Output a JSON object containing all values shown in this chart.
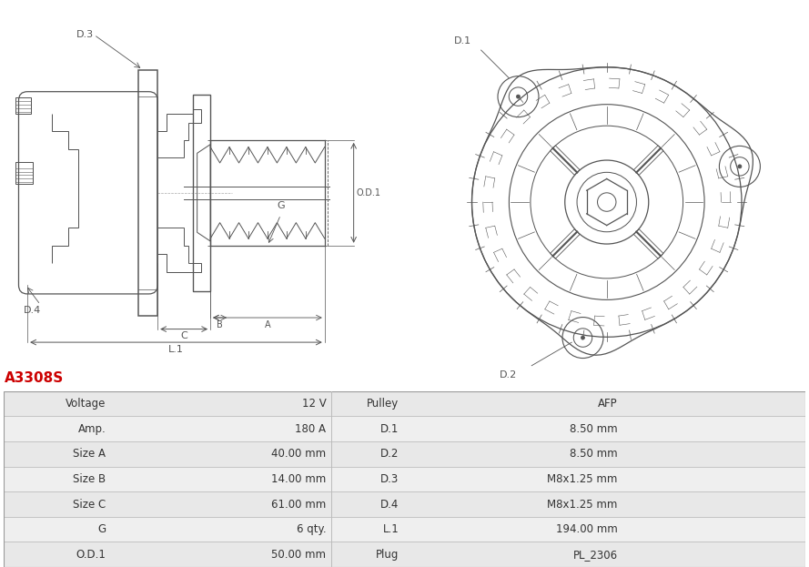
{
  "title": "A3308S",
  "title_color": "#cc0000",
  "bg_color": "#ffffff",
  "gray": "#555555",
  "lgray": "#888888",
  "rows": [
    [
      "Voltage",
      "12 V",
      "Pulley",
      "AFP"
    ],
    [
      "Amp.",
      "180 A",
      "D.1",
      "8.50 mm"
    ],
    [
      "Size A",
      "40.00 mm",
      "D.2",
      "8.50 mm"
    ],
    [
      "Size B",
      "14.00 mm",
      "D.3",
      "M8x1.25 mm"
    ],
    [
      "Size C",
      "61.00 mm",
      "D.4",
      "M8x1.25 mm"
    ],
    [
      "G",
      "6 qty.",
      "L.1",
      "194.00 mm"
    ],
    [
      "O.D.1",
      "50.00 mm",
      "Plug",
      "PL_2306"
    ]
  ],
  "font_size_table": 8.5,
  "font_size_title": 11,
  "row_bg_even": "#e8e8e8",
  "row_bg_odd": "#efefef",
  "border_color": "#bbbbbb"
}
